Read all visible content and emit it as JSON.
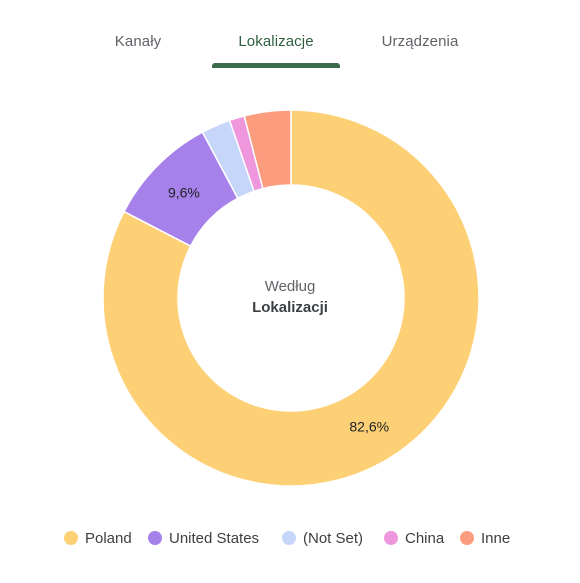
{
  "tabs": [
    {
      "label": "Kanały",
      "active": false
    },
    {
      "label": "Lokalizacje",
      "active": true
    },
    {
      "label": "Urządzenia",
      "active": false
    }
  ],
  "colors": {
    "accent": "#3d6b4d"
  },
  "chart_data": {
    "type": "pie",
    "donut": true,
    "center_label": {
      "line1": "Według",
      "line2": "Lokalizacji"
    },
    "legend_position": "bottom",
    "categories": [
      "Poland",
      "United States",
      "(Not Set)",
      "China",
      "Inne"
    ],
    "values": [
      82.6,
      9.6,
      2.5,
      1.3,
      4.0
    ],
    "data_labels": [
      "82,6%",
      "9,6%",
      "",
      "",
      ""
    ],
    "colors": [
      "#fdd076",
      "#a781ea",
      "#c5d6fa",
      "#ee97dd",
      "#fb9c7e"
    ]
  }
}
